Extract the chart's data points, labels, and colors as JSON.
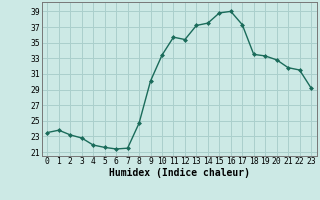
{
  "x": [
    0,
    1,
    2,
    3,
    4,
    5,
    6,
    7,
    8,
    9,
    10,
    11,
    12,
    13,
    14,
    15,
    16,
    17,
    18,
    19,
    20,
    21,
    22,
    23
  ],
  "y": [
    23.5,
    23.8,
    23.2,
    22.8,
    21.9,
    21.6,
    21.4,
    21.5,
    24.7,
    30.1,
    33.4,
    35.7,
    35.4,
    37.2,
    37.5,
    38.8,
    39.0,
    37.3,
    33.5,
    33.3,
    32.8,
    31.8,
    31.5,
    29.2
  ],
  "line_color": "#1a6b5a",
  "marker": "D",
  "marker_size": 2.0,
  "background_color": "#cce9e5",
  "grid_color": "#aacfcc",
  "xlabel": "Humidex (Indice chaleur)",
  "xlim": [
    -0.5,
    23.5
  ],
  "ylim": [
    20.5,
    40.2
  ],
  "yticks": [
    21,
    23,
    25,
    27,
    29,
    31,
    33,
    35,
    37,
    39
  ],
  "xticks": [
    0,
    1,
    2,
    3,
    4,
    5,
    6,
    7,
    8,
    9,
    10,
    11,
    12,
    13,
    14,
    15,
    16,
    17,
    18,
    19,
    20,
    21,
    22,
    23
  ],
  "xlabel_fontsize": 7.0,
  "tick_fontsize": 5.8,
  "line_width": 1.0
}
